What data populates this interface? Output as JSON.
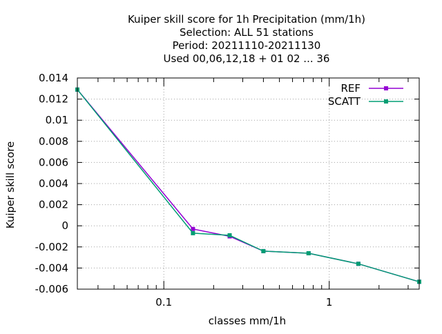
{
  "chart_data": {
    "type": "line",
    "title_lines": [
      "Kuiper skill score  for 1h Precipitation (mm/1h)",
      "Selection: ALL     51 stations",
      "Period: 20211110-20211130",
      "Used  00,06,12,18 + 01 02 ... 36"
    ],
    "xlabel": "classes mm/1h",
    "ylabel": "Kuiper skill score",
    "x_scale": "log",
    "xlim": [
      0.03,
      3.5
    ],
    "ylim": [
      -0.006,
      0.014
    ],
    "x_ticks": [
      {
        "value": 0.1,
        "label": "0.1"
      },
      {
        "value": 1,
        "label": "1"
      }
    ],
    "y_ticks": [
      {
        "value": 0.014,
        "label": "0.014"
      },
      {
        "value": 0.012,
        "label": "0.012"
      },
      {
        "value": 0.01,
        "label": "0.01"
      },
      {
        "value": 0.008,
        "label": "0.008"
      },
      {
        "value": 0.006,
        "label": "0.006"
      },
      {
        "value": 0.004,
        "label": "0.004"
      },
      {
        "value": 0.002,
        "label": "0.002"
      },
      {
        "value": 0,
        "label": "0"
      },
      {
        "value": -0.002,
        "label": "-0.002"
      },
      {
        "value": -0.004,
        "label": "-0.004"
      },
      {
        "value": -0.006,
        "label": "-0.006"
      }
    ],
    "grid": true,
    "legend_position": "top-right",
    "series": [
      {
        "name": "REF",
        "color": "#9400d3",
        "x": [
          0.03,
          0.15,
          0.25,
          0.4,
          0.75,
          1.5,
          3.5
        ],
        "y": [
          0.0129,
          -0.0003,
          -0.001,
          -0.0024,
          -0.0026,
          -0.0036,
          -0.0053
        ]
      },
      {
        "name": "SCATT",
        "color": "#009e73",
        "x": [
          0.03,
          0.15,
          0.25,
          0.4,
          0.75,
          1.5,
          3.5
        ],
        "y": [
          0.0129,
          -0.0007,
          -0.0009,
          -0.0024,
          -0.0026,
          -0.0036,
          -0.0053
        ]
      }
    ]
  }
}
